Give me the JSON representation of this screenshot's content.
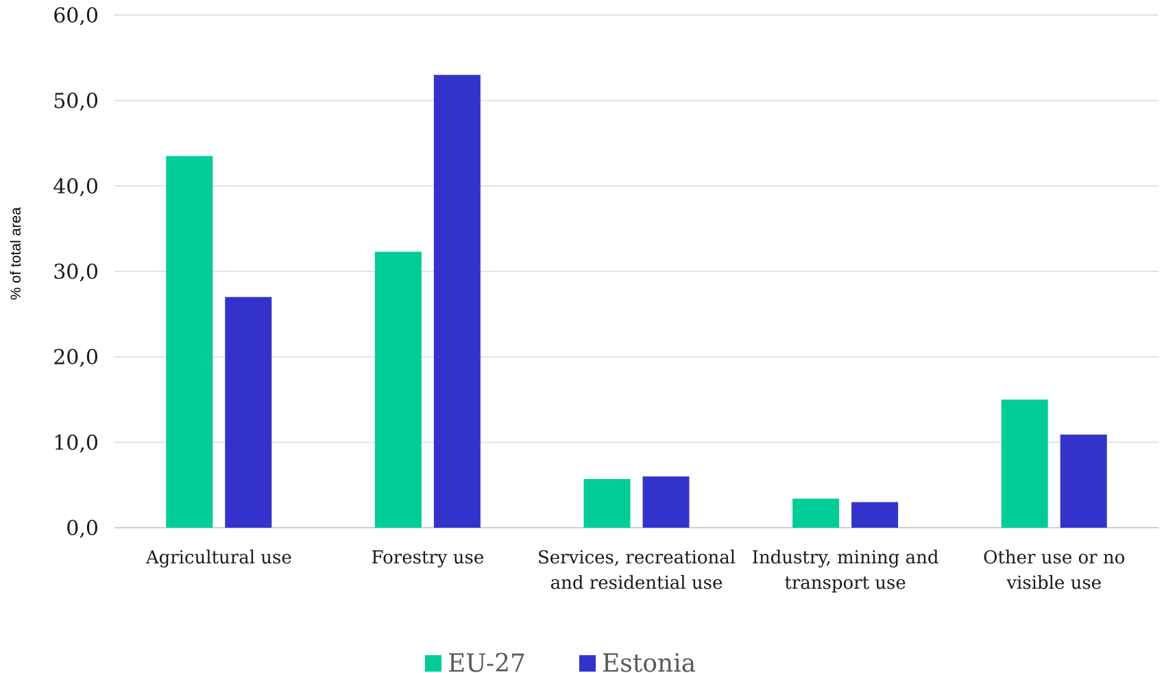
{
  "chart_data": {
    "type": "bar",
    "title": "",
    "xlabel": "",
    "ylabel": "% of total area",
    "ylim": [
      0,
      60
    ],
    "yticks": [
      0,
      10,
      20,
      30,
      40,
      50,
      60
    ],
    "ytick_labels": [
      "0,0",
      "10,0",
      "20,0",
      "30,0",
      "40,0",
      "50,0",
      "60,0"
    ],
    "grid": true,
    "legend_position": "bottom",
    "categories": [
      [
        "Agricultural use"
      ],
      [
        "Forestry use"
      ],
      [
        "Services, recreational",
        "and residential use"
      ],
      [
        "Industry, mining and",
        "transport use"
      ],
      [
        "Other use or no",
        "visible use"
      ]
    ],
    "series": [
      {
        "name": "EU-27",
        "color": "#00cc99",
        "values": [
          43.5,
          32.3,
          5.7,
          3.4,
          15.0
        ]
      },
      {
        "name": "Estonia",
        "color": "#3333cc",
        "values": [
          27.0,
          53.0,
          6.0,
          3.0,
          10.9
        ]
      }
    ]
  }
}
